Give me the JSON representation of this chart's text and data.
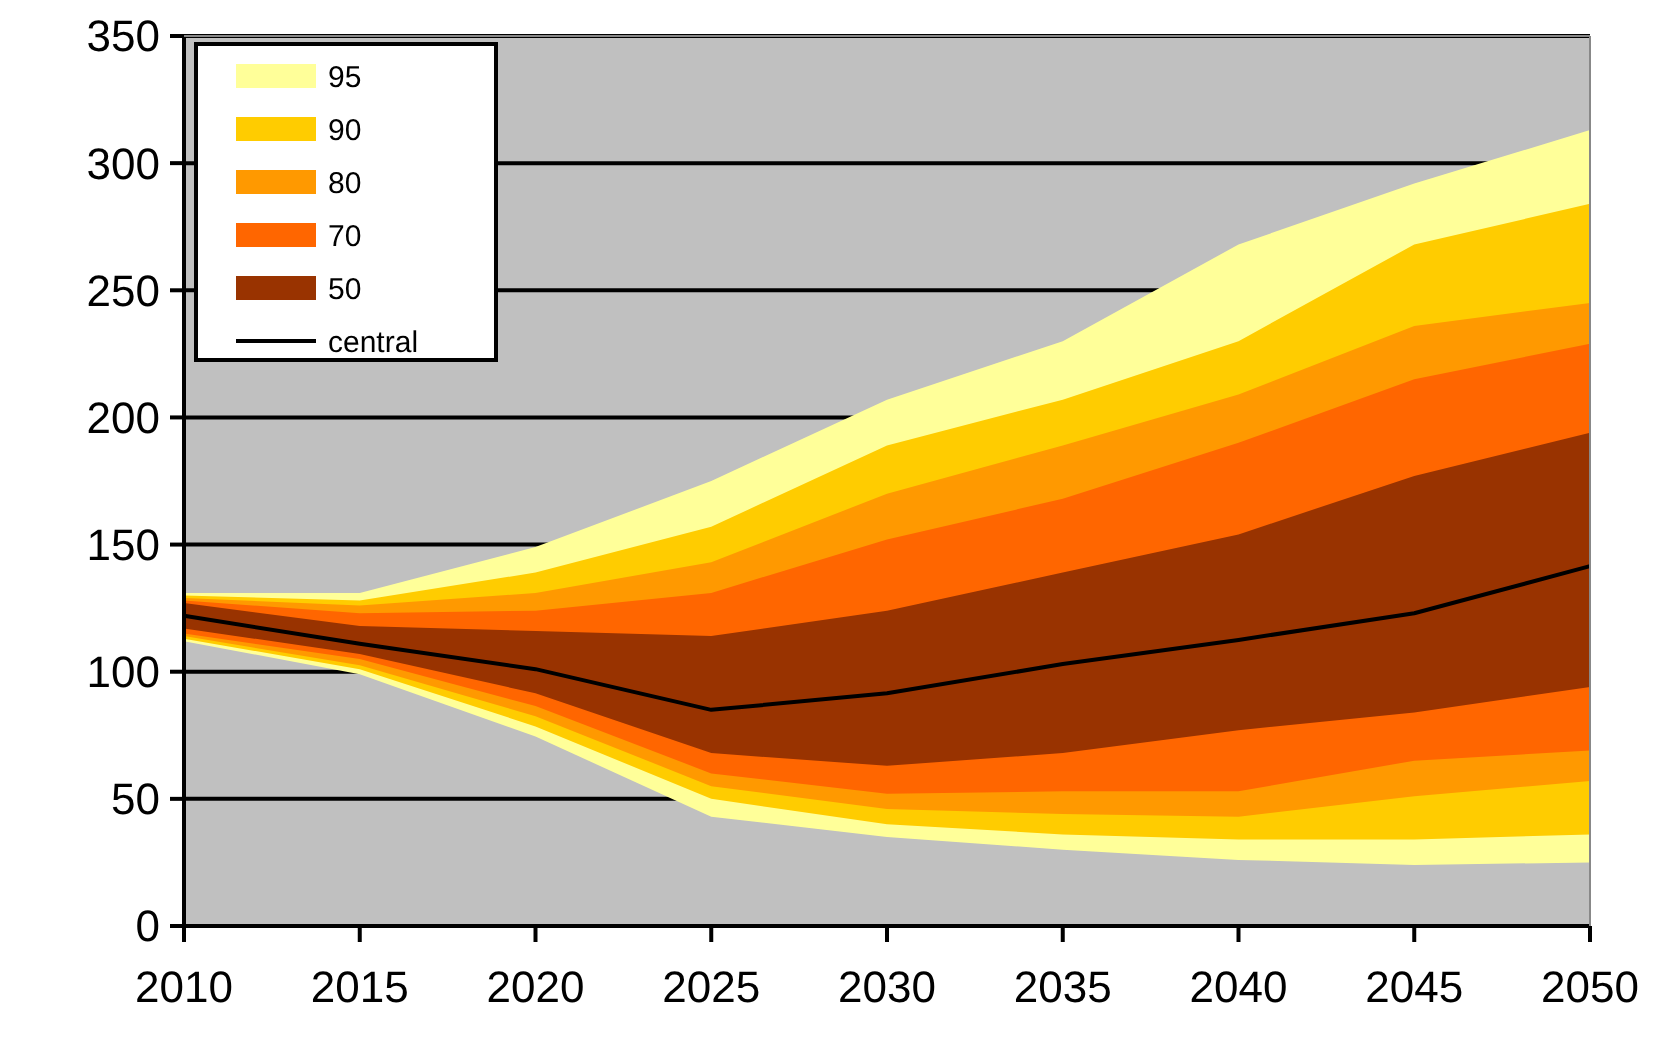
{
  "chart_data": {
    "type": "area",
    "x": [
      2010,
      2015,
      2020,
      2025,
      2030,
      2035,
      2040,
      2045,
      2050
    ],
    "series": [
      {
        "name": "95",
        "type": "area",
        "color": "#ffff99",
        "values": [
          null,
          null,
          null,
          null,
          null,
          null,
          null,
          null,
          null
        ],
        "lower": [
          112,
          99,
          74.5,
          43,
          35,
          30,
          26,
          24,
          25
        ],
        "upper": [
          131,
          131,
          149,
          175,
          207,
          230,
          268,
          292,
          313
        ]
      },
      {
        "name": "90",
        "type": "area",
        "color": "#ffcc00",
        "values": [
          null,
          null,
          null,
          null,
          null,
          null,
          null,
          null,
          null
        ],
        "lower": [
          113,
          101,
          78.5,
          50,
          40,
          36,
          34,
          34,
          36
        ],
        "upper": [
          130,
          128,
          139,
          157,
          189,
          207,
          230,
          268,
          284
        ]
      },
      {
        "name": "80",
        "type": "area",
        "color": "#ff9900",
        "values": [
          null,
          null,
          null,
          null,
          null,
          null,
          null,
          null,
          null
        ],
        "lower": [
          114,
          102.5,
          82.5,
          55,
          46,
          44,
          43,
          51,
          57
        ],
        "upper": [
          129,
          126,
          131,
          143,
          170,
          189,
          209,
          236,
          245
        ]
      },
      {
        "name": "70",
        "type": "area",
        "color": "#ff6600",
        "values": [
          null,
          null,
          null,
          null,
          null,
          null,
          null,
          null,
          null
        ],
        "lower": [
          115,
          105,
          86.5,
          60,
          52,
          53,
          53,
          65,
          69
        ],
        "upper": [
          128,
          123,
          124,
          131,
          152,
          168,
          190,
          215,
          229
        ]
      },
      {
        "name": "50",
        "type": "area",
        "color": "#993300",
        "values": [
          null,
          null,
          null,
          null,
          null,
          null,
          null,
          null,
          null
        ],
        "lower": [
          117,
          107,
          91.5,
          68,
          63,
          68,
          77,
          84,
          94
        ],
        "upper": [
          127,
          118,
          116,
          114,
          124,
          139,
          154,
          177,
          194
        ]
      },
      {
        "name": "central",
        "type": "line",
        "color": "#000000",
        "values": [
          122,
          111,
          101,
          85,
          91.5,
          103,
          112.5,
          123,
          141.5
        ]
      }
    ],
    "xlim": [
      2010,
      2050
    ],
    "xticks": [
      2010,
      2015,
      2020,
      2025,
      2030,
      2035,
      2040,
      2045,
      2050
    ],
    "ylim": [
      0,
      350
    ],
    "yticks": [
      0,
      50,
      100,
      150,
      200,
      250,
      300,
      350
    ],
    "grid": "y",
    "legend": "top left"
  }
}
